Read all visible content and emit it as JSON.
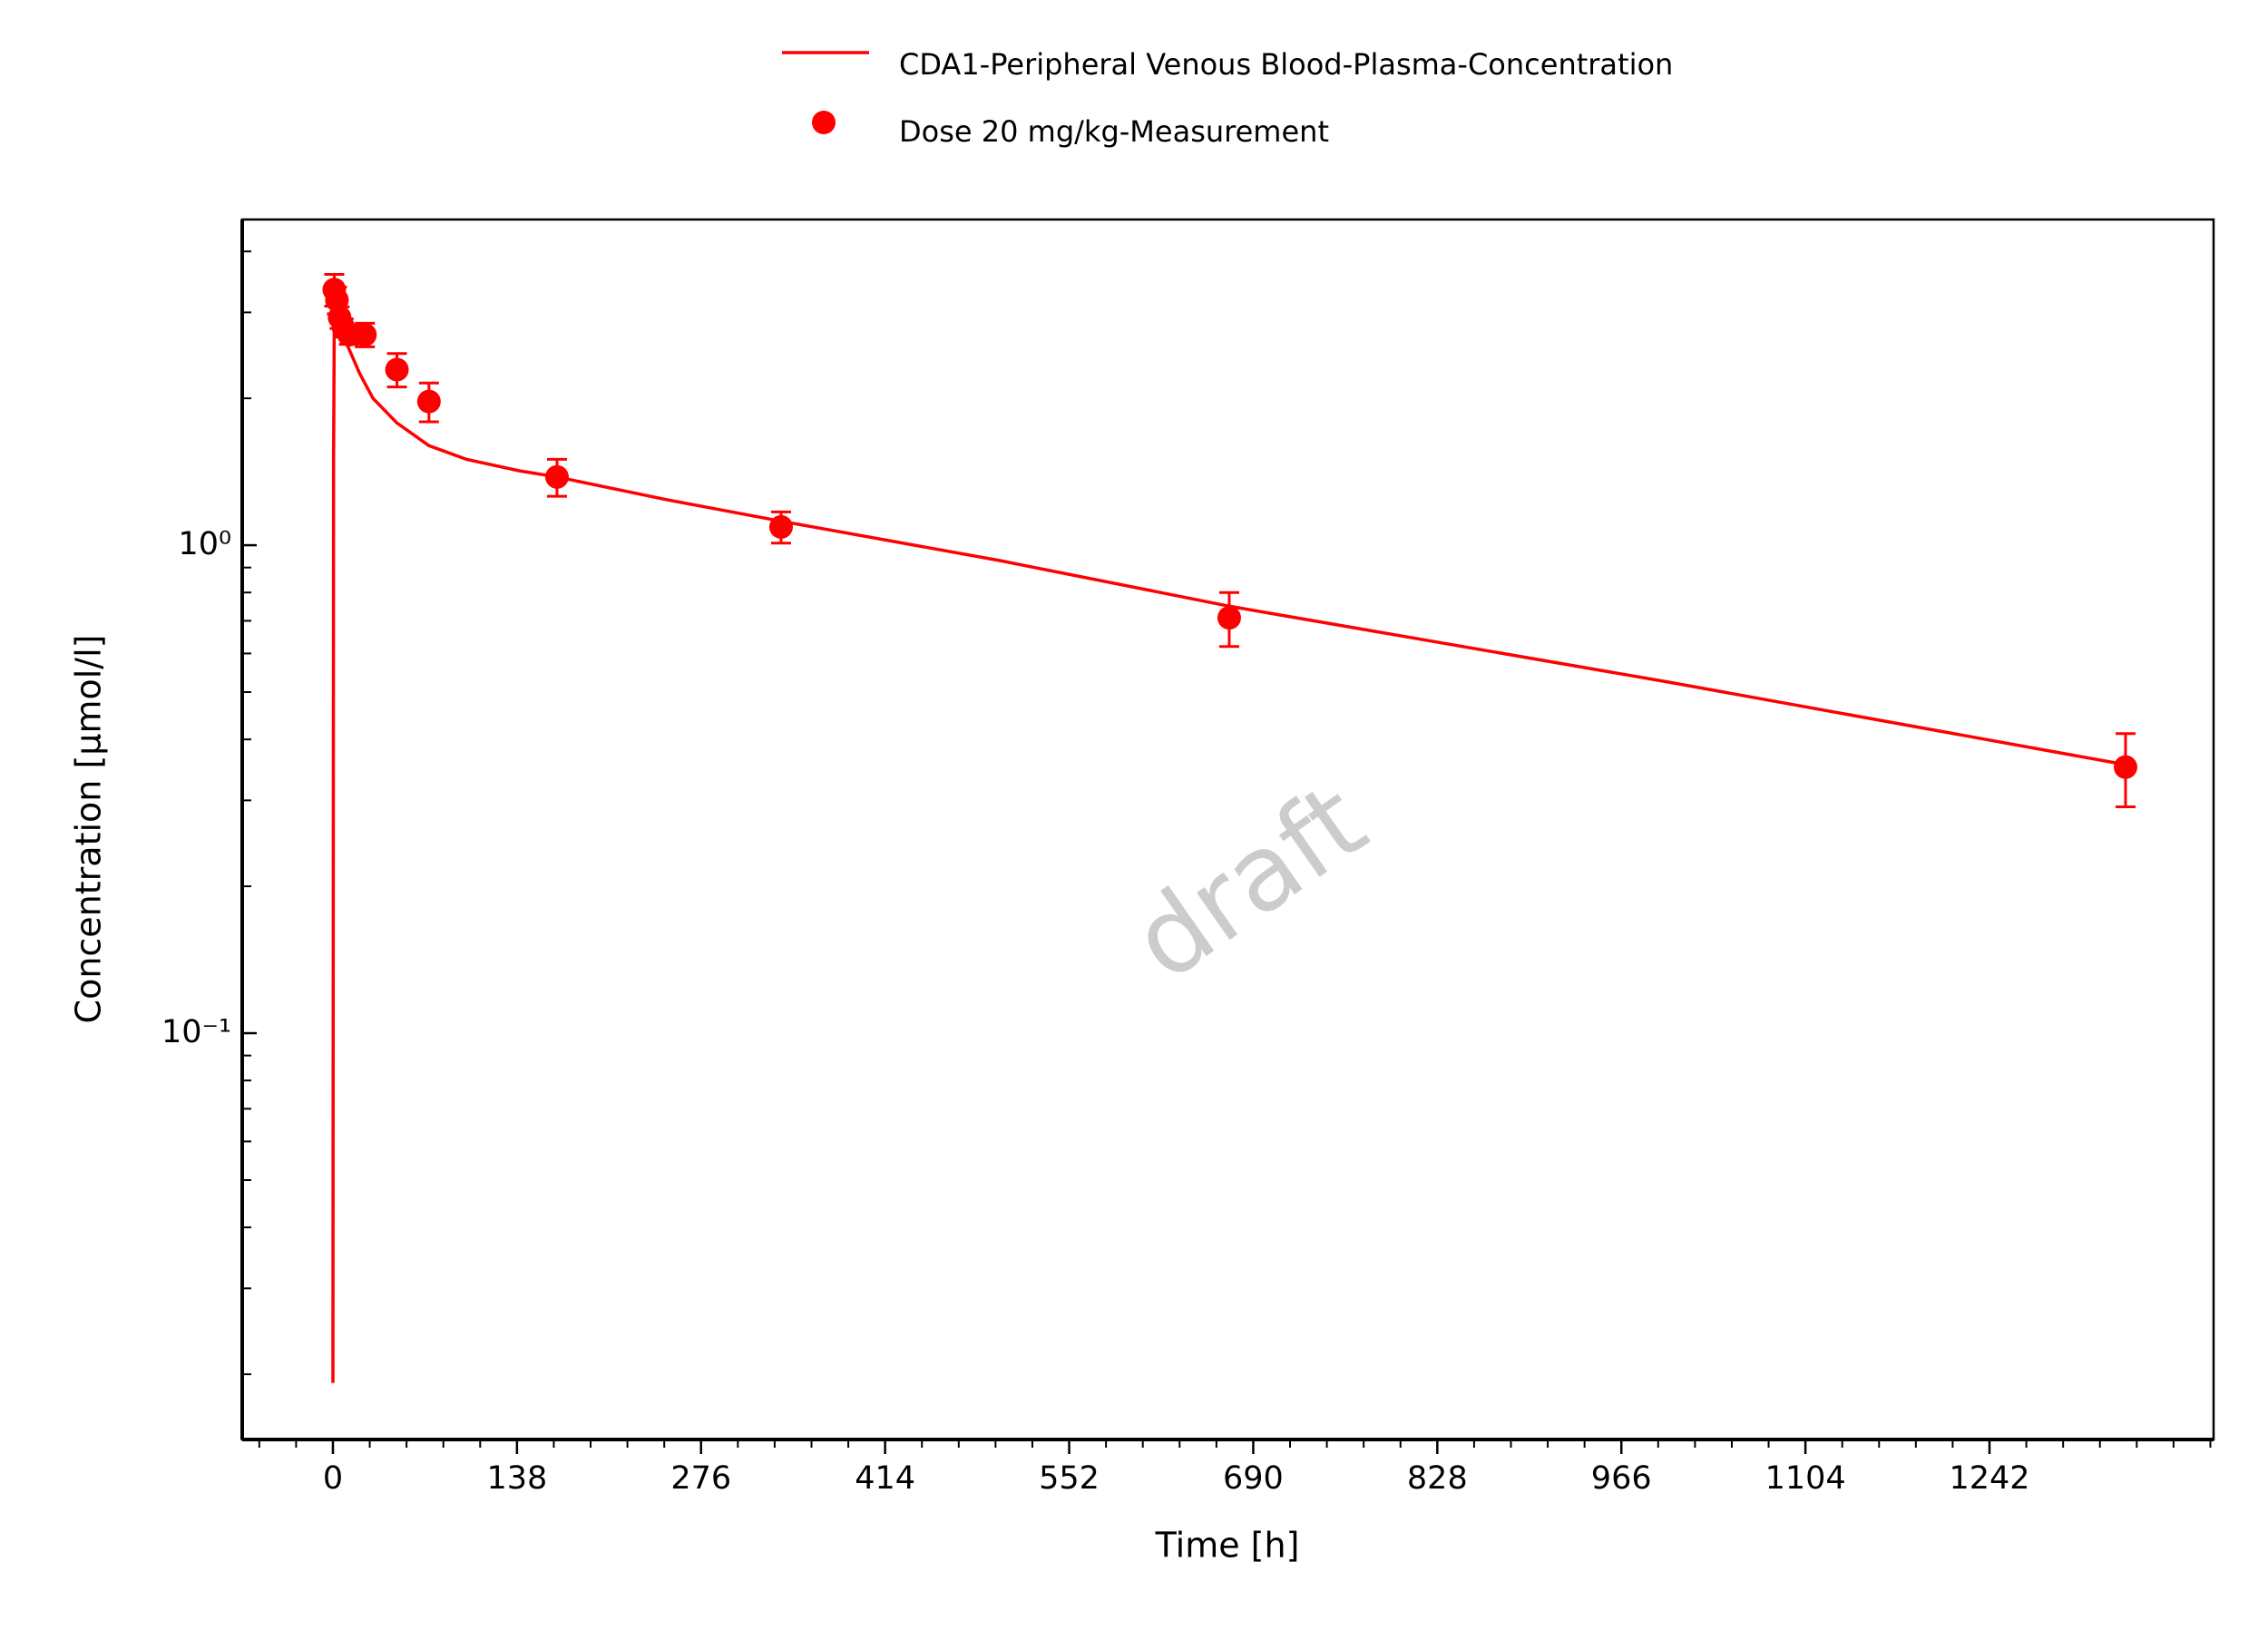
{
  "chart_data": {
    "type": "line+scatter",
    "legend_position": "top",
    "annotation": "draft",
    "x_label": "Time [h]",
    "y_label": "Concentration [µmol/l]",
    "log_y": true,
    "xlim": [
      -68,
      1410
    ],
    "ylim": [
      0.0147,
      4.65
    ],
    "xticks": [
      0,
      138,
      276,
      414,
      552,
      690,
      828,
      966,
      1104,
      1242
    ],
    "xminorticks": [
      -55.2,
      -27.6,
      27.6,
      55.2,
      82.8,
      110.4,
      165.6,
      193.2,
      220.8,
      248.4,
      303.6,
      331.2,
      358.8,
      386.4,
      441.6,
      469.2,
      496.8,
      524.4,
      579.6,
      607.2,
      634.8,
      662.4,
      717.6,
      745.2,
      772.8,
      800.4,
      855.6,
      883.2,
      910.8,
      938.4,
      993.6,
      1021.2,
      1048.8,
      1076.4,
      1131.6,
      1159.2,
      1186.8,
      1214.4,
      1269.6,
      1297.2,
      1324.8,
      1352.4,
      1380,
      1407.6
    ],
    "yticks": [
      {
        "value": 0.1,
        "label": "10⁻¹"
      },
      {
        "value": 1,
        "label": "10⁰"
      }
    ],
    "yminorticks": [
      0.02,
      0.03,
      0.04,
      0.05,
      0.06,
      0.07,
      0.08,
      0.09,
      0.2,
      0.3,
      0.4,
      0.5,
      0.6,
      0.7,
      0.8,
      0.9,
      2,
      3,
      4
    ],
    "series": [
      {
        "name": "CDA1-Peripheral Venous Blood-Plasma-Concentration",
        "kind": "line",
        "color": "#ff0000",
        "x": [
          0,
          0.5,
          1,
          2,
          5,
          10,
          20,
          30,
          48,
          72,
          100,
          140,
          168,
          250,
          336,
          500,
          672,
          1000,
          1344
        ],
        "values": [
          0.0192,
          1.5,
          2.8,
          3.0,
          2.85,
          2.6,
          2.25,
          2.0,
          1.78,
          1.6,
          1.5,
          1.42,
          1.38,
          1.24,
          1.12,
          0.93,
          0.75,
          0.525,
          0.355
        ]
      },
      {
        "name": "Dose 20 mg/kg-Measurement",
        "kind": "scatter",
        "color": "#ff0000",
        "x": [
          1,
          3,
          5,
          8,
          12,
          24,
          48,
          72,
          168,
          336,
          672,
          1344
        ],
        "values": [
          3.34,
          3.18,
          2.93,
          2.79,
          2.7,
          2.7,
          2.29,
          1.97,
          1.38,
          1.09,
          0.71,
          0.351
        ],
        "errors": [
          0.25,
          0.2,
          0.15,
          0.12,
          0.12,
          0.15,
          0.18,
          0.18,
          0.12,
          0.08,
          0.09,
          0.06
        ]
      }
    ]
  }
}
